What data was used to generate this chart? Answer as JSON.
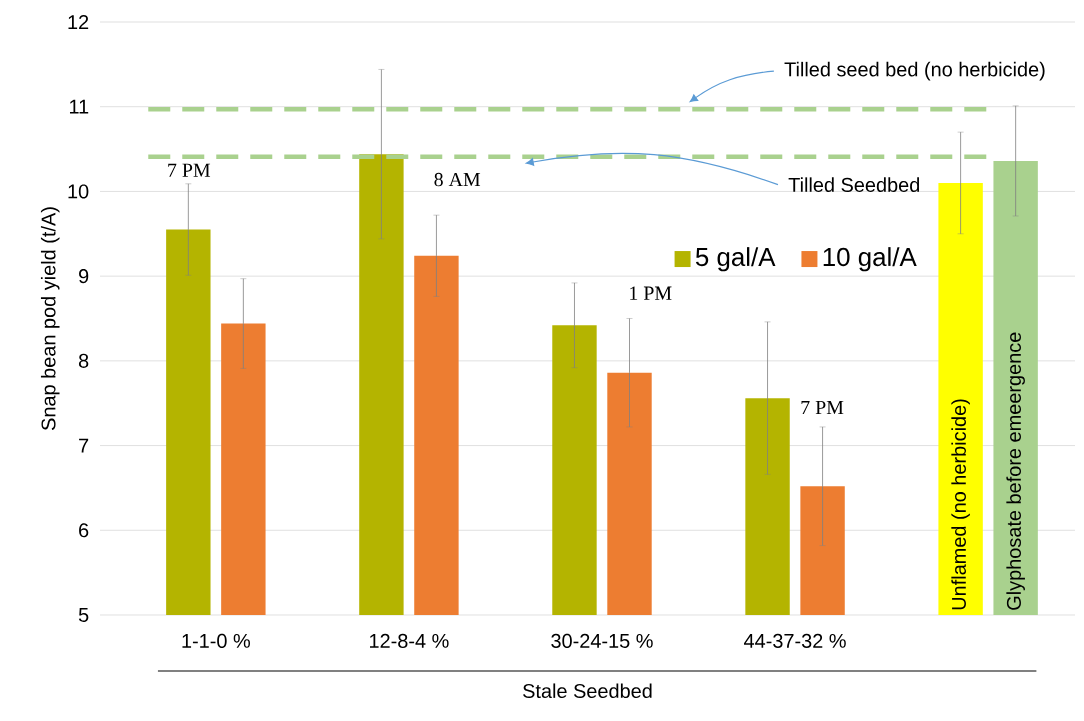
{
  "chart_data": {
    "type": "bar",
    "xlabel": "Stale Seedbed",
    "ylabel": "Snap bean pod yield (t/A)",
    "categories": [
      "1-1-0 %",
      "12-8-4 %",
      "30-24-15 %",
      "44-37-32 %",
      null
    ],
    "series": [
      {
        "name": "5 gal/A",
        "color": "#b4b400",
        "values": [
          9.55,
          10.44,
          8.42,
          7.56,
          null
        ],
        "errors": [
          0.54,
          1.0,
          0.5,
          0.9,
          null
        ]
      },
      {
        "name": "10 gal/A",
        "color": "#ed7d31",
        "values": [
          8.44,
          9.24,
          7.86,
          6.52,
          null
        ],
        "errors": [
          0.53,
          0.48,
          0.64,
          0.7,
          null
        ]
      },
      {
        "name": "Unflamed (no herbicide)",
        "color": "#ffff00",
        "values": [
          null,
          null,
          null,
          null,
          10.1
        ],
        "errors": [
          null,
          null,
          null,
          null,
          0.6
        ]
      },
      {
        "name": "Glyphosate before emeergence",
        "color": "#a9d18e",
        "values": [
          null,
          null,
          null,
          null,
          10.36
        ],
        "errors": [
          null,
          null,
          null,
          null,
          0.65
        ]
      }
    ],
    "ylim": [
      5,
      12
    ],
    "yticks": [
      5,
      6,
      7,
      8,
      9,
      10,
      11,
      12
    ],
    "grid": "y",
    "legend": "right",
    "ref_lines": [
      {
        "axis": "y",
        "value": 10.97,
        "label": "Tilled seed bed (no herbicide)",
        "color": "#a9d18e",
        "line_style": "dashed"
      },
      {
        "axis": "y",
        "value": 10.41,
        "label": "Tilled Seedbed",
        "color": "#a9d18e",
        "line_style": "dashed"
      }
    ],
    "annotations": [
      "7 PM",
      "8 AM",
      "1 PM",
      "7 PM"
    ]
  }
}
